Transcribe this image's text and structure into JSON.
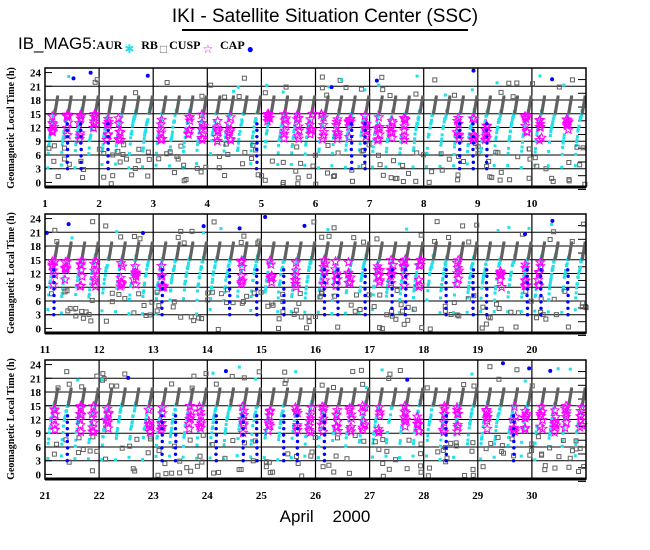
{
  "header": {
    "title": "IKI - Satellite Situation Center (SSC)"
  },
  "legend": {
    "prefix": "IB_MAG5:",
    "items": [
      {
        "label": "AUR",
        "color": "#22e0e8",
        "icon": "cyan-asterisk"
      },
      {
        "label": "RB",
        "color": "#606060",
        "icon": "gray-square"
      },
      {
        "label": "CUSP",
        "color": "#ff00ff",
        "icon": "magenta-star"
      },
      {
        "label": "CAP",
        "color": "#0000ff",
        "icon": "blue-dot"
      }
    ]
  },
  "chart_data": {
    "type": "scatter",
    "title": "IKI - Satellite Situation Center (SSC)",
    "xlabel": "April    2000",
    "ylabel": "Geomagnetic Local Time (h)",
    "ylim": [
      -1,
      25
    ],
    "yticks": [
      "24",
      "21",
      "18",
      "15",
      "12",
      "9",
      "6",
      "3",
      "0"
    ],
    "ytick_values": [
      24,
      21,
      18,
      15,
      12,
      9,
      6,
      3,
      0
    ],
    "grid": true,
    "panels": [
      {
        "day_start": 1,
        "day_end": 11,
        "xticks": [
          "1",
          "2",
          "3",
          "4",
          "5",
          "6",
          "7",
          "8",
          "9",
          "10"
        ]
      },
      {
        "day_start": 11,
        "day_end": 21,
        "xticks": [
          "11",
          "12",
          "13",
          "14",
          "15",
          "16",
          "17",
          "18",
          "19",
          "20"
        ]
      },
      {
        "day_start": 21,
        "day_end": 31,
        "xticks": [
          "21",
          "22",
          "23",
          "24",
          "25",
          "26",
          "27",
          "28",
          "29",
          "30"
        ]
      }
    ],
    "series": [
      {
        "name": "AUR",
        "color": "#22e0e8",
        "range_h": [
          3,
          16
        ]
      },
      {
        "name": "RB",
        "color": "#606060",
        "range_h": [
          0,
          24
        ]
      },
      {
        "name": "CUSP",
        "color": "#ff00ff",
        "range_h": [
          8,
          15
        ]
      },
      {
        "name": "CAP",
        "color": "#0000ff",
        "range_h": [
          2,
          24
        ]
      }
    ],
    "orbit": {
      "passes_per_day": 4,
      "seed": 7
    }
  }
}
